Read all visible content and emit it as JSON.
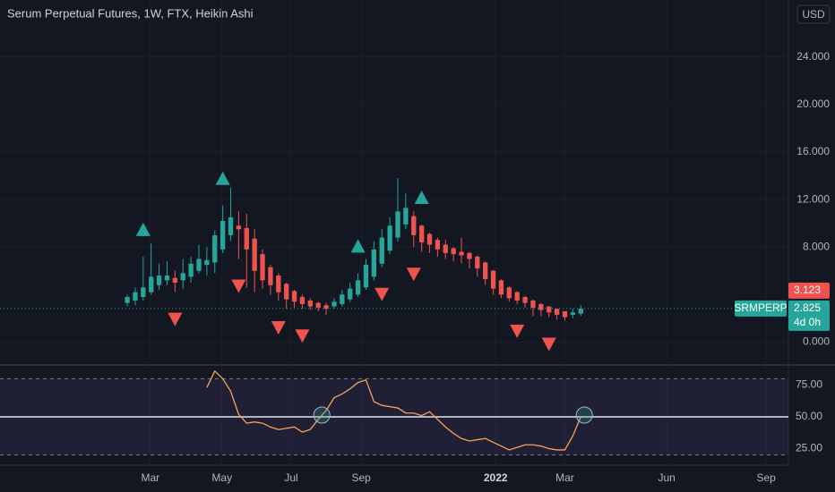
{
  "chart_data": {
    "type": "candlestick",
    "title": "Serum Perpetual Futures, 1W, FTX, Heikin Ashi",
    "currency": "USD",
    "symbol": "SRMPERP",
    "countdown": "4d 0h",
    "last_price": 3.123,
    "up_color": "#26a69a",
    "down_color": "#ef5350",
    "candles": {
      "open": [
        3.3,
        3.5,
        3.8,
        4.2,
        4.8,
        5.2,
        5.4,
        5.2,
        5.5,
        6.0,
        6.5,
        6.7,
        7.8,
        9.0,
        9.8,
        9.6,
        8.7,
        7.4,
        6.3,
        5.6,
        4.9,
        4.3,
        3.8,
        3.5,
        3.3,
        3.1,
        3.0,
        3.2,
        3.6,
        4.0,
        4.6,
        5.5,
        6.6,
        7.7,
        8.8,
        9.9,
        10.6,
        9.8,
        9.1,
        8.6,
        8.2,
        7.9,
        7.6,
        7.5,
        7.2,
        6.7,
        6.0,
        5.2,
        4.6,
        4.2,
        3.8,
        3.5,
        3.2,
        3.0,
        2.8,
        2.6,
        2.3,
        2.4
      ],
      "high": [
        4.0,
        4.6,
        7.2,
        8.3,
        6.6,
        6.8,
        6.0,
        7.0,
        7.2,
        8.2,
        8.0,
        9.4,
        11.5,
        13.0,
        11.0,
        10.8,
        9.5,
        7.8,
        6.5,
        5.8,
        5.0,
        4.4,
        4.0,
        3.7,
        3.4,
        3.3,
        3.7,
        4.4,
        5.0,
        5.8,
        7.0,
        8.5,
        9.5,
        10.5,
        13.8,
        12.5,
        11.0,
        9.9,
        9.2,
        8.8,
        8.6,
        8.0,
        8.8,
        7.6,
        7.3,
        6.8,
        6.1,
        5.3,
        4.7,
        4.3,
        3.9,
        3.6,
        3.3,
        3.0,
        2.8,
        2.6,
        2.8,
        3.1
      ],
      "low": [
        3.0,
        3.1,
        3.5,
        4.0,
        4.4,
        4.8,
        4.2,
        4.5,
        5.0,
        5.8,
        5.6,
        5.8,
        7.5,
        8.5,
        7.0,
        4.6,
        4.2,
        4.5,
        4.0,
        3.5,
        2.8,
        2.9,
        2.8,
        2.7,
        2.6,
        2.3,
        2.8,
        3.0,
        3.4,
        3.8,
        4.4,
        5.2,
        6.3,
        7.4,
        8.5,
        9.5,
        8.0,
        7.6,
        7.5,
        7.2,
        7.0,
        6.8,
        6.6,
        6.2,
        5.5,
        4.8,
        4.0,
        3.7,
        3.4,
        3.2,
        2.9,
        2.2,
        2.2,
        2.1,
        1.9,
        1.8,
        2.0,
        2.2
      ],
      "close": [
        3.8,
        4.2,
        4.6,
        5.5,
        5.6,
        5.6,
        5.0,
        5.8,
        6.6,
        7.0,
        6.9,
        9.0,
        10.2,
        10.5,
        9.5,
        7.8,
        6.0,
        5.2,
        4.8,
        4.2,
        3.6,
        3.4,
        3.2,
        3.0,
        2.9,
        2.8,
        3.4,
        4.0,
        4.5,
        5.2,
        6.5,
        7.8,
        8.8,
        9.8,
        11.0,
        11.3,
        9.0,
        8.4,
        8.2,
        7.8,
        7.5,
        7.4,
        7.3,
        7.0,
        6.2,
        5.3,
        4.5,
        4.0,
        3.7,
        3.5,
        3.3,
        2.9,
        2.7,
        2.5,
        2.3,
        2.1,
        2.5,
        2.825
      ]
    },
    "pivot_highs": [
      2,
      12,
      29,
      37
    ],
    "pivot_lows": [
      6,
      14,
      19,
      22,
      32,
      36,
      49,
      53
    ],
    "xlim": [
      -16,
      83.1
    ],
    "xticks": [
      {
        "value": 2.9,
        "label": "Mar"
      },
      {
        "value": 11.9,
        "label": "May"
      },
      {
        "value": 20.6,
        "label": "Jul"
      },
      {
        "value": 29.4,
        "label": "Sep"
      },
      {
        "value": 46.3,
        "label": "2022"
      },
      {
        "value": 55.0,
        "label": "Mar"
      },
      {
        "value": 67.8,
        "label": "Jun"
      },
      {
        "value": 80.3,
        "label": "Sep"
      }
    ],
    "ylim": [
      -1.7,
      28.8
    ],
    "yticks": [
      {
        "value": 0,
        "label": "0.000"
      },
      {
        "value": 8,
        "label": "8.000"
      },
      {
        "value": 12,
        "label": "12.000"
      },
      {
        "value": 16,
        "label": "16.000"
      },
      {
        "value": 20,
        "label": "20.000"
      },
      {
        "value": 24,
        "label": "24.000"
      }
    ],
    "rsi": {
      "color": "#f7a35c",
      "values": [
        null,
        null,
        null,
        null,
        null,
        null,
        null,
        null,
        null,
        null,
        73,
        86,
        80,
        70,
        52,
        45,
        46,
        45,
        42,
        40,
        41,
        42,
        38,
        40,
        48,
        55,
        65,
        68,
        72,
        77,
        79,
        62,
        59,
        58,
        57,
        53,
        53,
        51,
        54,
        48,
        42,
        37,
        33,
        31,
        32,
        33,
        30,
        27,
        24,
        26,
        28,
        28,
        27,
        25,
        24,
        24,
        35,
        50
      ],
      "crosses": [
        24,
        57
      ],
      "ylim": [
        12,
        89.4
      ],
      "band": [
        20,
        80
      ],
      "midline": 50,
      "yticks": [
        {
          "value": 25,
          "label": "25.00"
        },
        {
          "value": 50,
          "label": "50.00"
        },
        {
          "value": 75,
          "label": "75.00"
        }
      ]
    }
  }
}
